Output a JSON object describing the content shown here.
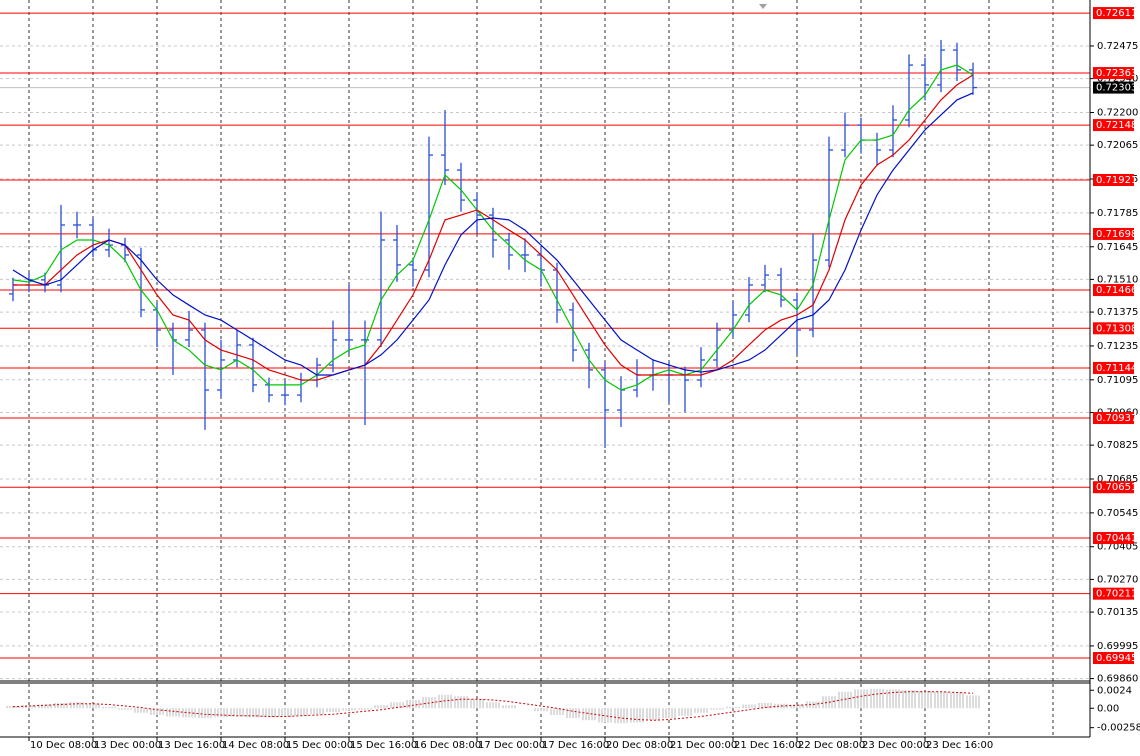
{
  "chart_data": [
    {
      "type": "ohlc",
      "categories": [
        null,
        "10 Dec 08:00",
        null,
        null,
        null,
        "13 Dec 00:00",
        null,
        null,
        null,
        "13 Dec 16:00",
        null,
        null,
        null,
        "14 Dec 08:00",
        null,
        null,
        null,
        "15 Dec 00:00",
        null,
        null,
        null,
        "15 Dec 16:00",
        null,
        null,
        null,
        "16 Dec 08:00",
        null,
        null,
        null,
        "17 Dec 00:00",
        null,
        null,
        null,
        "17 Dec 16:00",
        null,
        null,
        null,
        "20 Dec 08:00",
        null,
        null,
        null,
        "21 Dec 00:00",
        null,
        null,
        null,
        "21 Dec 16:00",
        null,
        null,
        null,
        "22 Dec 08:00",
        null,
        null,
        null,
        "23 Dec 00:00",
        null,
        null,
        null,
        "23 Dec 16:00",
        null,
        null,
        null
      ],
      "open": [
        0.7145,
        0.71487,
        0.71508,
        0.71487,
        0.71735,
        0.71735,
        0.71632,
        0.71652,
        0.71611,
        0.71384,
        0.71301,
        0.7126,
        0.71301,
        0.71053,
        0.71177,
        0.71239,
        0.71074,
        0.71032,
        0.71032,
        0.71094,
        0.71156,
        0.7126,
        0.7126,
        0.7126,
        0.71673,
        0.7157,
        0.71549,
        0.72024,
        0.71962,
        0.71838,
        0.71776,
        0.71673,
        0.71611,
        0.71611,
        0.71549,
        0.71384,
        0.71218,
        0.71136,
        0.7097,
        0.71053,
        0.71115,
        0.71115,
        0.71115,
        0.71094,
        0.71177,
        0.71301,
        0.71363,
        0.71487,
        0.71528,
        0.71425,
        0.71301,
        0.7159,
        0.72045,
        0.72148,
        0.72086,
        0.72045,
        0.72169,
        0.72396,
        0.72314,
        0.72458,
        0.72376
      ],
      "high": [
        0.71517,
        0.71538,
        0.71538,
        0.71818,
        0.7179,
        0.71765,
        0.7172,
        0.71682,
        0.71641,
        0.71414,
        0.71331,
        0.7138,
        0.71331,
        0.7126,
        0.713,
        0.71269,
        0.71104,
        0.7109,
        0.71124,
        0.71186,
        0.7134,
        0.71487,
        0.7134,
        0.7179,
        0.71735,
        0.716,
        0.721,
        0.7221,
        0.71992,
        0.71868,
        0.71806,
        0.71703,
        0.7168,
        0.71641,
        0.71579,
        0.71414,
        0.71248,
        0.71166,
        0.7111,
        0.7118,
        0.7118,
        0.7117,
        0.7115,
        0.7123,
        0.71331,
        0.7142,
        0.7152,
        0.7157,
        0.71558,
        0.71455,
        0.717,
        0.721,
        0.722,
        0.72178,
        0.72116,
        0.7223,
        0.7244,
        0.72426,
        0.725,
        0.72488,
        0.72406
      ],
      "low": [
        0.7142,
        0.71457,
        0.71457,
        0.71457,
        0.7168,
        0.71602,
        0.71602,
        0.71581,
        0.71354,
        0.7123,
        0.71115,
        0.7123,
        0.70888,
        0.71023,
        0.71147,
        0.71044,
        0.71002,
        0.7099,
        0.71002,
        0.71064,
        0.71126,
        0.712,
        0.70908,
        0.7123,
        0.715,
        0.7148,
        0.71519,
        0.719,
        0.7179,
        0.717,
        0.716,
        0.7155,
        0.7154,
        0.7148,
        0.7133,
        0.7117,
        0.7106,
        0.70813,
        0.709,
        0.71023,
        0.7105,
        0.71,
        0.7096,
        0.71064,
        0.71147,
        0.71271,
        0.71333,
        0.71457,
        0.71395,
        0.712,
        0.71271,
        0.7156,
        0.72015,
        0.7203,
        0.7198,
        0.72015,
        0.72139,
        0.7225,
        0.72284,
        0.7233,
        0.72273
      ],
      "close": [
        0.71487,
        0.71508,
        0.71487,
        0.71735,
        0.71735,
        0.71632,
        0.71652,
        0.71611,
        0.71384,
        0.71301,
        0.7126,
        0.71301,
        0.71053,
        0.71177,
        0.71239,
        0.71074,
        0.71032,
        0.71032,
        0.71094,
        0.71156,
        0.7126,
        0.7126,
        0.7126,
        0.71673,
        0.7157,
        0.71549,
        0.72024,
        0.71962,
        0.71838,
        0.71776,
        0.71673,
        0.71611,
        0.71611,
        0.71549,
        0.71384,
        0.71218,
        0.71136,
        0.7097,
        0.71053,
        0.71115,
        0.71115,
        0.71115,
        0.71094,
        0.71177,
        0.71301,
        0.71363,
        0.71487,
        0.71528,
        0.71425,
        0.71301,
        0.7159,
        0.72045,
        0.72148,
        0.72086,
        0.72045,
        0.72169,
        0.72396,
        0.72314,
        0.72458,
        0.72376,
        0.72303
      ],
      "color": "#2b4fd9",
      "lines": [
        {
          "color": "#00c800",
          "values": [
            0.71508,
            0.71499,
            0.71528,
            0.71632,
            0.71673,
            0.71673,
            0.71652,
            0.7159,
            0.71466,
            0.71384,
            0.7126,
            0.71218,
            0.71156,
            0.71136,
            0.71177,
            0.71136,
            0.71074,
            0.71074,
            0.71074,
            0.71115,
            0.71177,
            0.71218,
            0.71239,
            0.71425,
            0.71528,
            0.7159,
            0.71756,
            0.71942,
            0.7188,
            0.71797,
            0.71714,
            0.71652,
            0.7159,
            0.71549,
            0.71425,
            0.71301,
            0.71177,
            0.71094,
            0.71053,
            0.71074,
            0.71115,
            0.71136,
            0.71115,
            0.71136,
            0.71218,
            0.71301,
            0.71404,
            0.71466,
            0.71446,
            0.71384,
            0.71487,
            0.71756,
            0.72004,
            0.72086,
            0.72086,
            0.72107,
            0.7221,
            0.72272,
            0.72376,
            0.72396,
            0.72355
          ]
        },
        {
          "color": "#e00000",
          "values": [
            0.71487,
            0.71487,
            0.71487,
            0.71549,
            0.71611,
            0.71652,
            0.71673,
            0.71652,
            0.71549,
            0.71446,
            0.71363,
            0.71342,
            0.7126,
            0.71218,
            0.71198,
            0.71177,
            0.71136,
            0.71115,
            0.71094,
            0.71094,
            0.71115,
            0.71136,
            0.71156,
            0.71239,
            0.71342,
            0.71446,
            0.7159,
            0.71756,
            0.71776,
            0.71797,
            0.71756,
            0.71714,
            0.71673,
            0.71611,
            0.71549,
            0.71446,
            0.71342,
            0.71239,
            0.71156,
            0.71115,
            0.71115,
            0.71115,
            0.71115,
            0.71115,
            0.71136,
            0.71177,
            0.71239,
            0.71301,
            0.71342,
            0.71363,
            0.71404,
            0.71549,
            0.71756,
            0.719,
            0.71983,
            0.72024,
            0.72086,
            0.72169,
            0.72252,
            0.72314,
            0.72355
          ]
        },
        {
          "color": "#0010c8",
          "values": [
            0.71549,
            0.71508,
            0.71487,
            0.71508,
            0.7157,
            0.71632,
            0.71673,
            0.71652,
            0.7159,
            0.71508,
            0.71446,
            0.71404,
            0.71363,
            0.71342,
            0.71301,
            0.7126,
            0.71218,
            0.71177,
            0.71156,
            0.71115,
            0.71115,
            0.71136,
            0.71156,
            0.71198,
            0.7126,
            0.71342,
            0.71425,
            0.7157,
            0.71694,
            0.71756,
            0.71764,
            0.71756,
            0.71714,
            0.71652,
            0.7159,
            0.71508,
            0.71425,
            0.71342,
            0.7126,
            0.71218,
            0.71177,
            0.71156,
            0.71136,
            0.71127,
            0.71136,
            0.71156,
            0.71177,
            0.71218,
            0.7128,
            0.71342,
            0.71363,
            0.71425,
            0.71549,
            0.71714,
            0.71859,
            0.71962,
            0.72045,
            0.72128,
            0.7219,
            0.72252,
            0.72281
          ]
        }
      ],
      "levels": [
        0.72611,
        0.72363,
        0.72148,
        0.71921,
        0.71698,
        0.71466,
        0.71308,
        0.71144,
        0.70937,
        0.70651,
        0.70441,
        0.70211,
        0.69945
      ],
      "level_color": "#ff0000",
      "last_price": 0.72303,
      "ylim": [
        0.6985,
        0.72665
      ],
      "yticks": [
        0.72475,
        {
          "value": 0.7234,
          "label": "0.72340"
        },
        {
          "value": 0.722,
          "label": "0.72200"
        },
        0.72065,
        0.71925,
        0.71785,
        0.71645,
        {
          "value": 0.7151,
          "label": "0.71510"
        },
        0.71375,
        0.71235,
        0.71095,
        {
          "value": 0.7096,
          "label": "0.70960"
        },
        0.70825,
        0.70685,
        0.70545,
        0.70405,
        {
          "value": 0.7027,
          "label": "0.70270"
        },
        0.70135,
        0.69995,
        {
          "value": 0.6986,
          "label": "0.69860"
        }
      ],
      "grid": true
    },
    {
      "type": "bar",
      "values": [
        0.0003,
        0.0004,
        0.0005,
        0.0007,
        0.0008,
        0.0006,
        0.0002,
        -0.0002,
        -0.0006,
        -0.0009,
        -0.0011,
        -0.0012,
        -0.0013,
        -0.0012,
        -0.0011,
        -0.0012,
        -0.0012,
        -0.0011,
        -0.001,
        -0.0008,
        -0.0005,
        -0.0003,
        -0.0002,
        0.0004,
        0.0008,
        0.0011,
        0.0015,
        0.0018,
        0.0016,
        0.0012,
        0.0008,
        0.0004,
        0.0,
        -0.0004,
        -0.0009,
        -0.0013,
        -0.0016,
        -0.0019,
        -0.002,
        -0.0019,
        -0.0016,
        -0.0013,
        -0.001,
        -0.0006,
        -0.0002,
        0.0002,
        0.0005,
        0.0007,
        0.0006,
        0.0005,
        0.0009,
        0.0016,
        0.0022,
        0.0025,
        0.0026,
        0.0025,
        0.0024,
        0.0023,
        0.0022,
        0.0021,
        0.0017
      ],
      "color": "#b8b8b8",
      "signal": {
        "color": "#d00000",
        "values": [
          0.0002,
          0.0003,
          0.0004,
          0.0005,
          0.0006,
          0.0006,
          0.0005,
          0.0003,
          0.0001,
          -0.0002,
          -0.0004,
          -0.0006,
          -0.0008,
          -0.0009,
          -0.001,
          -0.001,
          -0.0011,
          -0.0011,
          -0.001,
          -0.0009,
          -0.0008,
          -0.0006,
          -0.0004,
          -0.0002,
          0.0001,
          0.0004,
          0.0007,
          0.001,
          0.0012,
          0.0012,
          0.0011,
          0.0009,
          0.0006,
          0.0003,
          0.0,
          -0.0004,
          -0.0007,
          -0.001,
          -0.0013,
          -0.0015,
          -0.0016,
          -0.0015,
          -0.0013,
          -0.0011,
          -0.0008,
          -0.0005,
          -0.0002,
          0.0001,
          0.0003,
          0.0004,
          0.0005,
          0.0008,
          0.0012,
          0.0016,
          0.0019,
          0.0021,
          0.0022,
          0.0022,
          0.0022,
          0.0021,
          0.002
        ]
      },
      "ylim": [
        -0.00383,
        0.0035
      ],
      "yticks": [
        0.0024,
        {
          "value": 0,
          "label": "0.00"
        },
        -0.002586
      ]
    }
  ]
}
